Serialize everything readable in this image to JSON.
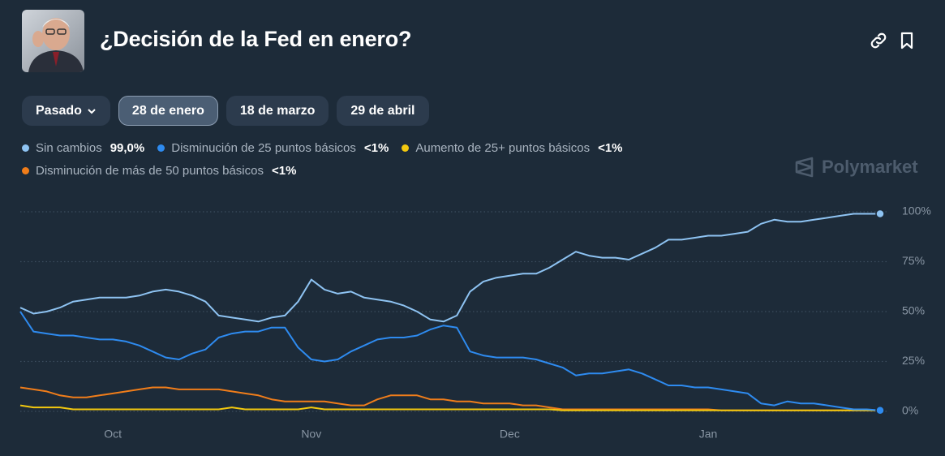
{
  "filters": [
    "Pasado",
    "28 de enero",
    "18 de marzo",
    "29 de abril"
  ],
  "brand": "Polymarket",
  "chart_data": {
    "type": "line",
    "title": "¿Decisión de la Fed en enero?",
    "categories": [
      null,
      null,
      null,
      null,
      null,
      null,
      null,
      "Oct",
      null,
      null,
      null,
      null,
      null,
      null,
      null,
      null,
      null,
      null,
      null,
      null,
      null,
      null,
      "Nov",
      null,
      null,
      null,
      null,
      null,
      null,
      null,
      null,
      null,
      null,
      null,
      null,
      null,
      null,
      "Dec",
      null,
      null,
      null,
      null,
      null,
      null,
      null,
      null,
      null,
      null,
      null,
      null,
      null,
      null,
      "Jan",
      null,
      null,
      null,
      null,
      null,
      null,
      null,
      null,
      null,
      null,
      null,
      null,
      null
    ],
    "ylim": [
      0,
      100
    ],
    "yticks": [
      {
        "value": 0,
        "label": "0%"
      },
      {
        "value": 25,
        "label": "25%"
      },
      {
        "value": 50,
        "label": "50%"
      },
      {
        "value": 75,
        "label": "75%"
      },
      {
        "value": 100,
        "label": "100%"
      }
    ],
    "grid": true,
    "series": [
      {
        "name": "Sin cambios",
        "current": "99,0%",
        "color": "#8ec3f2",
        "values": [
          52,
          49,
          50,
          52,
          55,
          56,
          57,
          57,
          57,
          58,
          60,
          61,
          60,
          58,
          55,
          48,
          47,
          46,
          45,
          47,
          48,
          55,
          66,
          61,
          59,
          60,
          57,
          56,
          55,
          53,
          50,
          46,
          45,
          48,
          60,
          65,
          67,
          68,
          69,
          69,
          72,
          76,
          80,
          78,
          77,
          77,
          76,
          79,
          82,
          86,
          86,
          87,
          88,
          88,
          89,
          90,
          94,
          96,
          95,
          95,
          96,
          97,
          98,
          99,
          99,
          99
        ]
      },
      {
        "name": "Disminución de 25 puntos básicos",
        "current": "<1%",
        "color": "#2e8bf0",
        "values": [
          50,
          40,
          39,
          38,
          38,
          37,
          36,
          36,
          35,
          33,
          30,
          27,
          26,
          29,
          31,
          37,
          39,
          40,
          40,
          42,
          42,
          32,
          26,
          25,
          26,
          30,
          33,
          36,
          37,
          37,
          38,
          41,
          43,
          42,
          30,
          28,
          27,
          27,
          27,
          26,
          24,
          22,
          18,
          19,
          19,
          20,
          21,
          19,
          16,
          13,
          13,
          12,
          12,
          11,
          10,
          9,
          4,
          3,
          5,
          4,
          4,
          3,
          2,
          1,
          1,
          0.5
        ]
      },
      {
        "name": "Aumento de 25+ puntos básicos",
        "current": "<1%",
        "color": "#f2c80f",
        "values": [
          3,
          2,
          2,
          2,
          1,
          1,
          1,
          1,
          1,
          1,
          1,
          1,
          1,
          1,
          1,
          1,
          2,
          1,
          1,
          1,
          1,
          1,
          2,
          1,
          1,
          1,
          1,
          1,
          1,
          1,
          1,
          1,
          1,
          1,
          1,
          1,
          1,
          1,
          1,
          1,
          1,
          0.5,
          0.5,
          0.5,
          0.5,
          0.5,
          0.5,
          0.5,
          0.5,
          0.5,
          0.5,
          0.5,
          0.5,
          0.5,
          0.5,
          0.5,
          0.5,
          0.5,
          0.5,
          0.5,
          0.5,
          0.5,
          0.5,
          0.5,
          0.5,
          0.5
        ]
      },
      {
        "name": "Disminución de más de 50 puntos básicos",
        "current": "<1%",
        "color": "#f07d1a",
        "values": [
          12,
          11,
          10,
          8,
          7,
          7,
          8,
          9,
          10,
          11,
          12,
          12,
          11,
          11,
          11,
          11,
          10,
          9,
          8,
          6,
          5,
          5,
          5,
          5,
          4,
          3,
          3,
          6,
          8,
          8,
          8,
          6,
          6,
          5,
          5,
          4,
          4,
          4,
          3,
          3,
          2,
          1,
          1,
          1,
          1,
          1,
          1,
          1,
          1,
          1,
          1,
          1,
          1,
          0.5,
          0.5,
          0.5,
          0.5,
          0.5,
          0.5,
          0.5,
          0.5,
          0.5,
          0.5,
          0.5,
          0.5,
          0.5
        ]
      }
    ]
  }
}
